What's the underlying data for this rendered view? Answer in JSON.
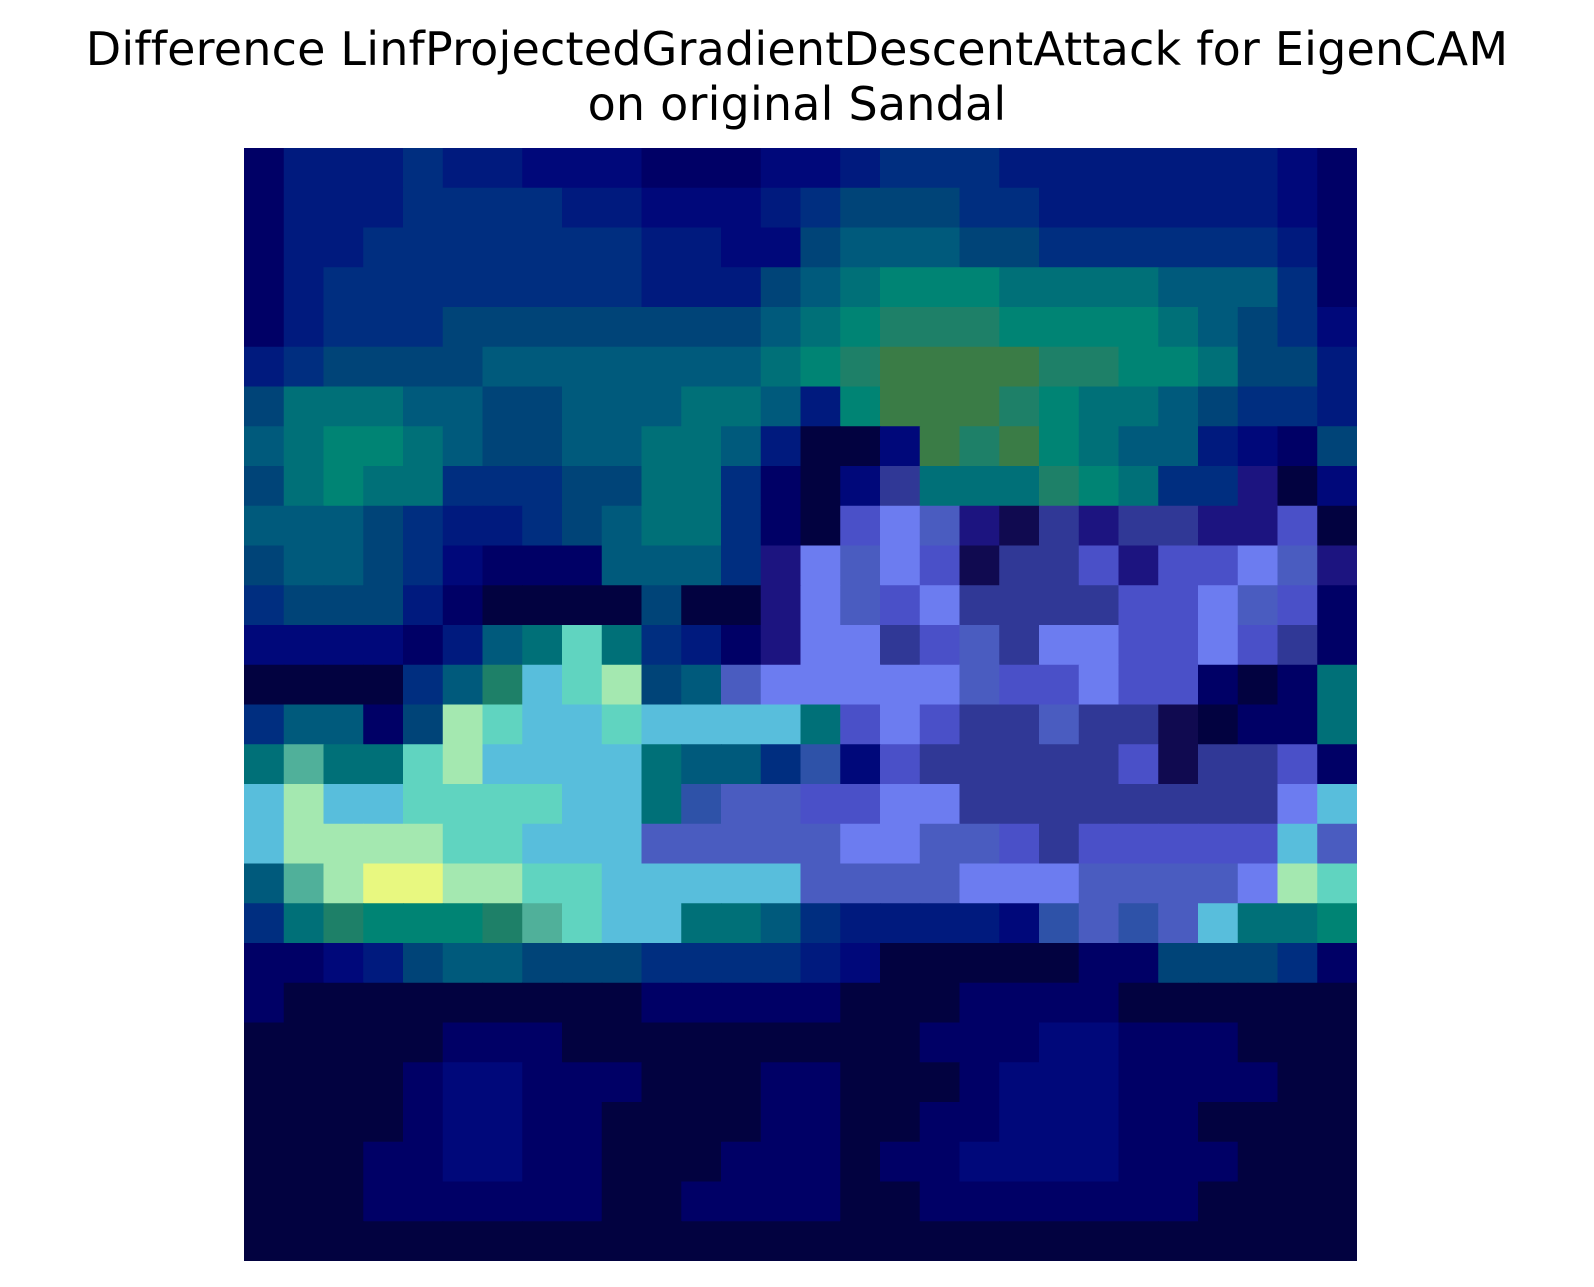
{
  "figure": {
    "title_line1": "Difference LinfProjectedGradientDescentAttack for EigenCAM",
    "title_line2": "on original Sandal"
  },
  "heatmap": {
    "rows": 28,
    "cols": 28,
    "palette": {
      "0": "#020240",
      "1": "#000066",
      "2": "#00087a",
      "3": "#001a7e",
      "4": "#002e80",
      "5": "#004478",
      "6": "#005a7c",
      "7": "#007078",
      "8": "#008474",
      "9": "#1e8068",
      "A": "#3a7c46",
      "B": "#50b09a",
      "C": "#60d4c0",
      "D": "#58bedc",
      "E": "#a4e8b0",
      "F": "#e8f880",
      "G": "#303896",
      "H": "#4a50c8",
      "I": "#6c7cf0",
      "J": "#4a5cc0",
      "K": "#2e52a8",
      "L": "#100a50",
      "M": "#1c1480"
    },
    "cells": [
      "1333433222111223444333333321",
      "1333444433222345554433333321",
      "1334444444332256665544444431",
      "1344444444333567888777766641",
      "1344455555555678999888876542",
      "3455556666666789AAAA99887553",
      "5777665566677638AAA987765443",
      "67887655667763002A9A87663215",
      "5787744455774102G77798744M02",
      "666543345677410HIJMLGMGGMMH0",
      "5665421116664MIJIHLGGHMHHIJM",
      "4555310000500MIJHIGGGGHHIJH1",
      "22221367C7431MIIGHJGIIHHIHG1",
      "0000469DCE56JIIIIIJHHIHH1017",
      "46615ECDDCDDDD7HIHGGJGGL0117",
      "7B77CEDDDD7664K2HGGGGGHLGGH1",
      "DEDDCCCCDD7KJJHHIIGGGGGGGGID",
      "DEEEECCDDDJJJJJIIJJHGHHHHHDJ",
      "6BEFFEECCDDDDDJJJJIIIJJJJIEC",
      "4798889BCDD776433332KJKJD778",
      "1123566555444432000001155541",
      "1000000000111110001111000000",
      "0000011100000000011122111000",
      "0000122111000110001222111100",
      "0000122110000110011222110000",
      "0001122110001110112222111000",
      "0001111110011110011111110000",
      "0000000000000000000000000000"
    ]
  }
}
